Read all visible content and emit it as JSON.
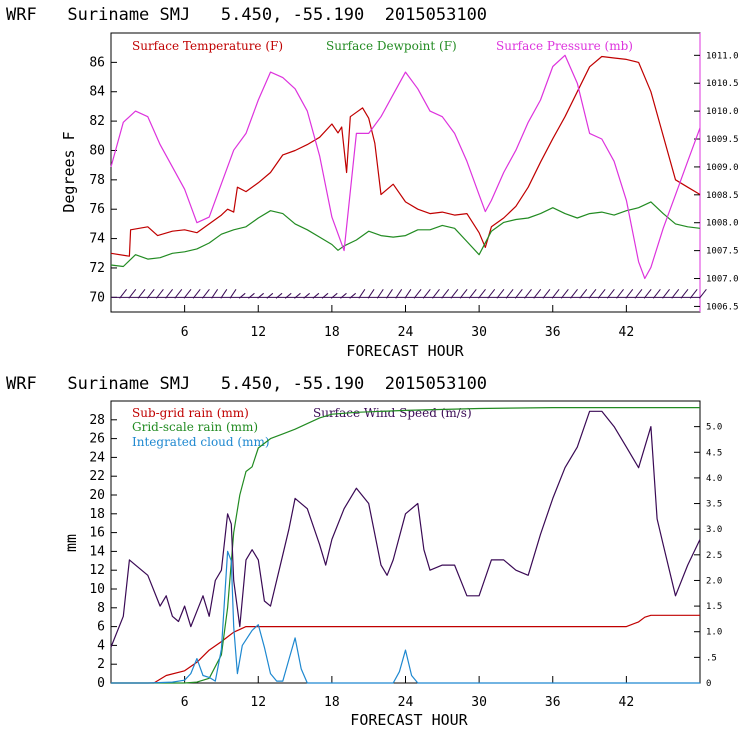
{
  "colors": {
    "temperature": "#c00000",
    "dewpoint": "#228b22",
    "pressure": "#dd33dd",
    "wind": "#3a0a55",
    "subgrid": "#c00000",
    "gridscale": "#228b22",
    "cloud": "#1e88d0"
  },
  "chart_data": [
    {
      "type": "line",
      "title": "WRF   Suriname SMJ   5.450, -55.190  2015053100",
      "xlabel": "FORECAST HOUR",
      "ylabel": "Degrees F",
      "xlim": [
        0,
        48
      ],
      "ylim": [
        69,
        88
      ],
      "y2lim": [
        1006.4,
        1011.4
      ],
      "xticks": [
        6,
        12,
        18,
        24,
        30,
        36,
        42
      ],
      "yticks": [
        70,
        72,
        74,
        76,
        78,
        80,
        82,
        84,
        86
      ],
      "y2ticks": [
        "1006.5",
        "1007.0",
        "1007.5",
        "1008.0",
        "1008.5",
        "1009.0",
        "1009.5",
        "1010.0",
        "1010.5",
        "1011.0"
      ],
      "legend": [
        "Surface Temperature (F)",
        "Surface Dewpoint (F)",
        "Surface Pressure (mb)"
      ],
      "series": [
        {
          "name": "Surface Temperature (F)",
          "axis": "left",
          "x": [
            0,
            1.5,
            1.6,
            3,
            3.8,
            5,
            6,
            7,
            8,
            9,
            9.5,
            10,
            10.3,
            11,
            12,
            13,
            14,
            15,
            16,
            17,
            18,
            18.5,
            18.8,
            19.2,
            19.5,
            20,
            20.5,
            21,
            21.5,
            22,
            23,
            24,
            25,
            26,
            27,
            28,
            29,
            30,
            30.5,
            31,
            32,
            33,
            34,
            35,
            36,
            37,
            38,
            39,
            40,
            41,
            42,
            43,
            44,
            45,
            46,
            47,
            48
          ],
          "values": [
            73,
            72.8,
            74.6,
            74.8,
            74.2,
            74.5,
            74.6,
            74.4,
            75,
            75.6,
            76,
            75.8,
            77.5,
            77.2,
            77.8,
            78.5,
            79.7,
            80,
            80.4,
            80.9,
            81.8,
            81.2,
            81.6,
            78.5,
            82.3,
            82.6,
            82.9,
            82.2,
            80.5,
            77,
            77.7,
            76.5,
            76,
            75.7,
            75.8,
            75.6,
            75.7,
            74.4,
            73.4,
            74.8,
            75.4,
            76.2,
            77.5,
            79.2,
            80.8,
            82.3,
            84,
            85.7,
            86.4,
            86.3,
            86.2,
            86,
            84,
            81,
            78,
            77.5,
            77
          ]
        },
        {
          "name": "Surface Dewpoint (F)",
          "axis": "left",
          "x": [
            0,
            1,
            2,
            3,
            4,
            5,
            6,
            7,
            8,
            9,
            10,
            11,
            12,
            13,
            14,
            15,
            16,
            17,
            18,
            18.5,
            19,
            20,
            21,
            22,
            23,
            24,
            25,
            26,
            27,
            28,
            29,
            30,
            31,
            32,
            33,
            34,
            35,
            36,
            37,
            38,
            39,
            40,
            41,
            42,
            43,
            44,
            45,
            46,
            47,
            48
          ],
          "values": [
            72.2,
            72.1,
            72.9,
            72.6,
            72.7,
            73,
            73.1,
            73.3,
            73.7,
            74.3,
            74.6,
            74.8,
            75.4,
            75.9,
            75.7,
            75,
            74.6,
            74.1,
            73.6,
            73.2,
            73.5,
            73.9,
            74.5,
            74.2,
            74.1,
            74.2,
            74.6,
            74.6,
            74.9,
            74.7,
            73.8,
            72.9,
            74.5,
            75.1,
            75.3,
            75.4,
            75.7,
            76.1,
            75.7,
            75.4,
            75.7,
            75.8,
            75.6,
            75.9,
            76.1,
            76.5,
            75.7,
            75,
            74.8,
            74.7
          ]
        },
        {
          "name": "Surface Pressure (mb)",
          "axis": "right",
          "x": [
            0,
            1,
            2,
            3,
            4,
            5,
            6,
            7,
            8,
            9,
            10,
            11,
            12,
            13,
            14,
            15,
            16,
            17,
            18,
            19,
            20,
            21,
            22,
            23,
            24,
            25,
            26,
            27,
            28,
            29,
            30,
            30.5,
            31,
            32,
            33,
            34,
            35,
            36,
            37,
            38,
            39,
            40,
            41,
            42,
            43,
            43.5,
            44,
            45,
            46,
            47,
            48
          ],
          "values": [
            1009,
            1009.8,
            1010,
            1009.9,
            1009.4,
            1009.0,
            1008.6,
            1008.0,
            1008.1,
            1008.7,
            1009.3,
            1009.6,
            1010.2,
            1010.7,
            1010.6,
            1010.4,
            1010.0,
            1009.2,
            1008.1,
            1007.5,
            1009.6,
            1009.6,
            1009.9,
            1010.3,
            1010.7,
            1010.4,
            1010.0,
            1009.9,
            1009.6,
            1009.1,
            1008.5,
            1008.2,
            1008.4,
            1008.9,
            1009.3,
            1009.8,
            1010.2,
            1010.8,
            1011.0,
            1010.5,
            1009.6,
            1009.5,
            1009.1,
            1008.4,
            1007.3,
            1007.0,
            1007.2,
            1007.9,
            1008.5,
            1009.1,
            1009.7
          ]
        },
        {
          "name": "Wind barbs (surface)",
          "axis": "none",
          "x": [
            0,
            48
          ],
          "values": [
            70,
            70
          ]
        }
      ]
    },
    {
      "type": "line",
      "title": "WRF   Suriname SMJ   5.450, -55.190  2015053100",
      "xlabel": "FORECAST HOUR",
      "ylabel": "mm",
      "xlim": [
        0,
        48
      ],
      "ylim": [
        0,
        30
      ],
      "y2lim": [
        0,
        5.5
      ],
      "xticks": [
        6,
        12,
        18,
        24,
        30,
        36,
        42
      ],
      "yticks": [
        0,
        2,
        4,
        6,
        8,
        10,
        12,
        14,
        16,
        18,
        20,
        22,
        24,
        26,
        28
      ],
      "y2ticks": [
        "0",
        ".5",
        "1.0",
        "1.5",
        "2.0",
        "2.5",
        "3.0",
        "3.5",
        "4.0",
        "4.5",
        "5.0"
      ],
      "legend": [
        "Sub-grid rain (mm)",
        "Grid-scale rain (mm)",
        "Integrated cloud (mm)",
        "Surface Wind Speed (m/s)"
      ],
      "series": [
        {
          "name": "Sub-grid rain (mm)",
          "axis": "left",
          "x": [
            0,
            3.5,
            4.5,
            6,
            7,
            8,
            9,
            10,
            10.5,
            11,
            12,
            18,
            24,
            30,
            36,
            42,
            43,
            43.5,
            44,
            48
          ],
          "values": [
            0,
            0,
            0.8,
            1.3,
            2.2,
            3.5,
            4.4,
            5.4,
            5.7,
            6.0,
            6.0,
            6.0,
            6.0,
            6.0,
            6.0,
            6.0,
            6.5,
            7.0,
            7.2,
            7.2
          ]
        },
        {
          "name": "Grid-scale rain (mm)",
          "axis": "left",
          "x": [
            0,
            6,
            7,
            8,
            9,
            9.5,
            10,
            10.5,
            11,
            11.5,
            12,
            13,
            14,
            15,
            16,
            17,
            18,
            20,
            24,
            30,
            36,
            42,
            48
          ],
          "values": [
            0,
            0,
            0.1,
            0.5,
            3,
            8,
            16,
            20,
            22.5,
            23,
            25,
            26,
            26.5,
            27,
            27.6,
            28.2,
            28.6,
            28.8,
            29.0,
            29.2,
            29.3,
            29.3,
            29.3
          ]
        },
        {
          "name": "Integrated cloud (mm)",
          "axis": "left",
          "x": [
            0,
            3,
            5,
            6,
            6.5,
            7,
            7.5,
            8,
            8.5,
            9,
            9.5,
            9.8,
            10,
            10.3,
            10.7,
            11,
            11.5,
            12,
            12.5,
            13,
            13.5,
            14,
            14.5,
            15,
            15.5,
            16,
            20,
            23,
            23.5,
            24,
            24.5,
            25,
            30,
            48
          ],
          "values": [
            0,
            0,
            0.1,
            0.3,
            1.0,
            2.6,
            0.8,
            0.6,
            0.2,
            3.6,
            14.0,
            13.0,
            6.0,
            1.0,
            4.0,
            4.6,
            5.6,
            6.2,
            3.8,
            1.0,
            0.2,
            0.2,
            2.5,
            4.8,
            1.5,
            0,
            0,
            0,
            1.2,
            3.5,
            0.8,
            0,
            0,
            0
          ]
        },
        {
          "name": "Surface Wind Speed (m/s)",
          "axis": "right",
          "x": [
            0,
            1,
            1.5,
            2,
            3,
            4,
            4.5,
            5,
            5.5,
            6,
            6.5,
            7,
            7.5,
            8,
            8.5,
            9,
            9.5,
            9.8,
            10,
            10.5,
            11,
            11.5,
            12,
            12.5,
            13,
            14,
            14.5,
            15,
            16,
            17,
            17.5,
            18,
            19,
            20,
            21,
            22,
            22.5,
            23,
            24,
            25,
            25.5,
            26,
            27,
            28,
            29,
            30,
            31,
            32,
            33,
            34,
            35,
            36,
            37,
            38,
            39,
            40,
            41,
            42,
            43,
            44,
            44.5,
            45,
            46,
            47,
            48
          ],
          "values": [
            0.7,
            1.3,
            2.4,
            2.3,
            2.1,
            1.5,
            1.7,
            1.3,
            1.2,
            1.5,
            1.1,
            1.4,
            1.7,
            1.3,
            2.0,
            2.2,
            3.3,
            3.1,
            2.0,
            1.1,
            2.4,
            2.6,
            2.4,
            1.6,
            1.5,
            2.5,
            3.0,
            3.6,
            3.4,
            2.7,
            2.3,
            2.8,
            3.4,
            3.8,
            3.5,
            2.3,
            2.1,
            2.4,
            3.3,
            3.5,
            2.6,
            2.2,
            2.3,
            2.3,
            1.7,
            1.7,
            2.4,
            2.4,
            2.2,
            2.1,
            2.9,
            3.6,
            4.2,
            4.6,
            5.3,
            5.3,
            5.0,
            4.6,
            4.2,
            5.0,
            3.2,
            2.7,
            1.7,
            2.3,
            2.8
          ]
        }
      ]
    }
  ]
}
